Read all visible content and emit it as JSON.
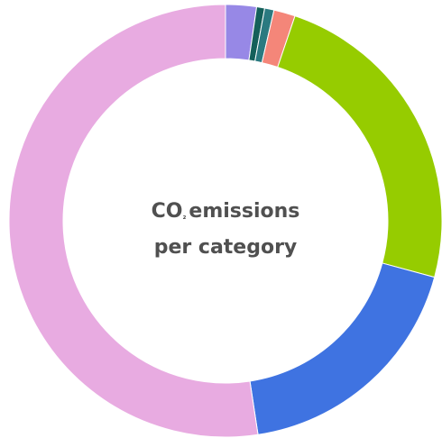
{
  "chart_data": {
    "type": "pie",
    "style": "donut",
    "center_title": {
      "line1_prefix": "CO",
      "line1_subscript": "₂",
      "line1_suffix": "emissions",
      "line2": "per category"
    },
    "slices": [
      {
        "value": 2.3,
        "color": "#9788e6"
      },
      {
        "value": 0.6,
        "color": "#14605a"
      },
      {
        "value": 0.7,
        "color": "#2a7a80"
      },
      {
        "value": 1.6,
        "color": "#f48679"
      },
      {
        "value": 24.0,
        "color": "#96cc00"
      },
      {
        "value": 18.4,
        "color": "#3f73e1"
      },
      {
        "value": 52.4,
        "color": "#e8abe1"
      }
    ],
    "background": "#ffffff",
    "legend": "none"
  }
}
